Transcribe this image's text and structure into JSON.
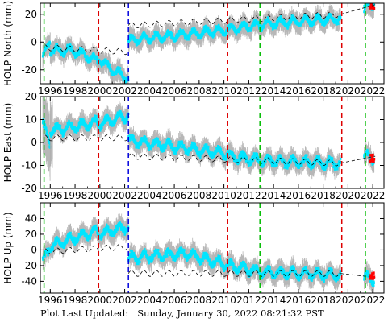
{
  "footer": {
    "label": "Plot Last Updated:",
    "timestamp": "Sunday, January 30, 2022 08:21:32 PST"
  },
  "colors": {
    "data": "#00e5ff",
    "error_bars": "#aaaaaa",
    "model": "#000000",
    "recent": "#ff0000",
    "line_green": "#00bb00",
    "line_red": "#dd0000",
    "line_blue": "#0000dd"
  },
  "chart_data": [
    {
      "type": "scatter",
      "ylabel": "HOLP North (mm)",
      "xlim": [
        1995.2,
        2022.9
      ],
      "ylim": [
        -30,
        28
      ],
      "yticks": [
        -20,
        0,
        20
      ],
      "xticks": [
        1996,
        1998,
        2000,
        2002,
        2004,
        2006,
        2008,
        2010,
        2012,
        2014,
        2016,
        2018,
        2020,
        2022
      ],
      "grid": false,
      "segments": [
        {
          "x0": 1995.4,
          "x1": 1996.0,
          "y0": -12,
          "y1": 2
        },
        {
          "x0": 1996.0,
          "x1": 1998.0,
          "y0": -6,
          "y1": -6
        },
        {
          "x0": 1998.0,
          "x1": 1999.9,
          "y0": -6,
          "y1": -14
        },
        {
          "x0": 1999.9,
          "x1": 2001.0,
          "y0": -12,
          "y1": -20
        },
        {
          "x0": 2001.0,
          "x1": 2002.3,
          "y0": -20,
          "y1": -26
        },
        {
          "x0": 2002.3,
          "x1": 2010.4,
          "y0": 1,
          "y1": 9
        },
        {
          "x0": 2010.4,
          "x1": 2013.0,
          "y0": 9,
          "y1": 13
        },
        {
          "x0": 2013.0,
          "x1": 2019.4,
          "y0": 13,
          "y1": 17
        },
        {
          "x0": 2021.3,
          "x1": 2022.1,
          "y0": 24,
          "y1": 27
        }
      ],
      "model": [
        {
          "x0": 1995.6,
          "x1": 2002.3,
          "y0": -4,
          "y1": -7
        },
        {
          "x0": 2002.3,
          "x1": 2019.4,
          "y0": 12,
          "y1": 20
        },
        {
          "x0": 2019.4,
          "x1": 2022.2,
          "y0": 20,
          "y1": 27
        }
      ],
      "recent": {
        "x0": 2021.8,
        "x1": 2022.1,
        "y": 26
      },
      "event_lines": [
        {
          "x": 1995.5,
          "color": "green"
        },
        {
          "x": 1999.9,
          "color": "red"
        },
        {
          "x": 2002.3,
          "color": "blue"
        },
        {
          "x": 2010.3,
          "color": "red"
        },
        {
          "x": 2012.9,
          "color": "green"
        },
        {
          "x": 2019.5,
          "color": "red"
        },
        {
          "x": 2021.4,
          "color": "green"
        }
      ]
    },
    {
      "type": "scatter",
      "ylabel": "HOLP East (mm)",
      "xlim": [
        1995.2,
        2022.9
      ],
      "ylim": [
        -20,
        20
      ],
      "yticks": [
        -20,
        -10,
        0,
        10,
        20
      ],
      "xticks": [
        1996,
        1998,
        2000,
        2002,
        2004,
        2006,
        2008,
        2010,
        2012,
        2014,
        2016,
        2018,
        2020,
        2022
      ],
      "grid": false,
      "segments": [
        {
          "x0": 1995.4,
          "x1": 1996.0,
          "y0": 8,
          "y1": 0
        },
        {
          "x0": 1996.0,
          "x1": 1999.9,
          "y0": 5,
          "y1": 9
        },
        {
          "x0": 1999.9,
          "x1": 2002.3,
          "y0": 8,
          "y1": 12
        },
        {
          "x0": 2002.3,
          "x1": 2010.4,
          "y0": 1,
          "y1": -5
        },
        {
          "x0": 2010.4,
          "x1": 2013.0,
          "y0": -6,
          "y1": -8
        },
        {
          "x0": 2013.0,
          "x1": 2019.4,
          "y0": -8,
          "y1": -9
        },
        {
          "x0": 2021.3,
          "x1": 2022.1,
          "y0": -6,
          "y1": -7
        }
      ],
      "model": [
        {
          "x0": 1995.6,
          "x1": 2002.3,
          "y0": 2,
          "y1": 2
        },
        {
          "x0": 2002.3,
          "x1": 2019.4,
          "y0": -6,
          "y1": -9
        },
        {
          "x0": 2019.4,
          "x1": 2022.2,
          "y0": -9,
          "y1": -6
        }
      ],
      "recent": {
        "x0": 2021.8,
        "x1": 2022.1,
        "y": -7
      },
      "event_lines": [
        {
          "x": 1995.5,
          "color": "green"
        },
        {
          "x": 1999.9,
          "color": "red"
        },
        {
          "x": 2002.3,
          "color": "blue"
        },
        {
          "x": 2010.3,
          "color": "red"
        },
        {
          "x": 2012.9,
          "color": "green"
        },
        {
          "x": 2019.5,
          "color": "red"
        },
        {
          "x": 2021.4,
          "color": "green"
        }
      ]
    },
    {
      "type": "scatter",
      "ylabel": "HOLP Up (mm)",
      "xlim": [
        1995.2,
        2022.9
      ],
      "ylim": [
        -55,
        60
      ],
      "yticks": [
        -40,
        -20,
        0,
        20,
        40
      ],
      "xticks": [
        1996,
        1998,
        2000,
        2002,
        2004,
        2006,
        2008,
        2010,
        2012,
        2014,
        2016,
        2018,
        2020,
        2022
      ],
      "grid": false,
      "segments": [
        {
          "x0": 1995.4,
          "x1": 1996.0,
          "y0": -15,
          "y1": 5
        },
        {
          "x0": 1996.0,
          "x1": 1999.9,
          "y0": 5,
          "y1": 25
        },
        {
          "x0": 1999.9,
          "x1": 2002.3,
          "y0": 20,
          "y1": 30
        },
        {
          "x0": 2002.3,
          "x1": 2007.0,
          "y0": -10,
          "y1": -5
        },
        {
          "x0": 2007.0,
          "x1": 2010.4,
          "y0": -5,
          "y1": -20
        },
        {
          "x0": 2010.4,
          "x1": 2013.0,
          "y0": -20,
          "y1": -28
        },
        {
          "x0": 2013.0,
          "x1": 2019.4,
          "y0": -28,
          "y1": -32
        },
        {
          "x0": 2021.3,
          "x1": 2022.1,
          "y0": -35,
          "y1": -38
        }
      ],
      "model": [
        {
          "x0": 1995.6,
          "x1": 2002.3,
          "y0": -2,
          "y1": 4
        },
        {
          "x0": 2002.3,
          "x1": 2019.4,
          "y0": -30,
          "y1": -30
        },
        {
          "x0": 2019.4,
          "x1": 2022.2,
          "y0": -30,
          "y1": -35
        }
      ],
      "recent": {
        "x0": 2021.8,
        "x1": 2022.1,
        "y": -34
      },
      "event_lines": [
        {
          "x": 1995.5,
          "color": "green"
        },
        {
          "x": 1999.9,
          "color": "red"
        },
        {
          "x": 2002.3,
          "color": "blue"
        },
        {
          "x": 2010.3,
          "color": "red"
        },
        {
          "x": 2012.9,
          "color": "green"
        },
        {
          "x": 2019.5,
          "color": "red"
        },
        {
          "x": 2021.4,
          "color": "green"
        }
      ]
    }
  ]
}
